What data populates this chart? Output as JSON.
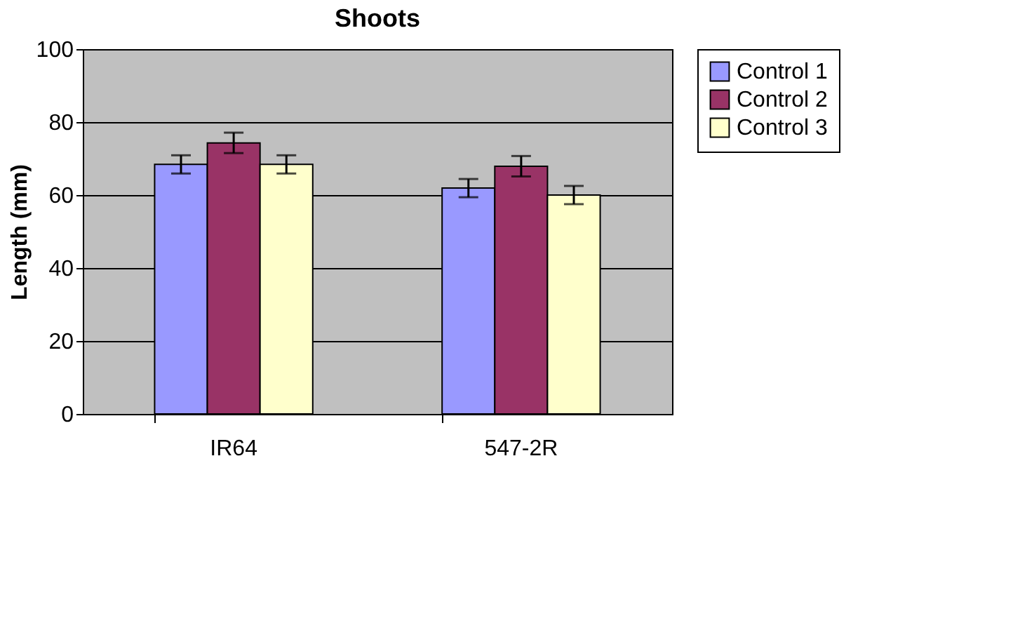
{
  "chart_data": {
    "type": "bar",
    "title": "Shoots",
    "ylabel": "Length (mm)",
    "categories": [
      "IR64",
      "547-2R"
    ],
    "series": [
      {
        "name": "Control 1",
        "color": "#9999ff",
        "values": [
          68.4,
          61.9
        ],
        "errors": [
          2.5,
          2.5
        ]
      },
      {
        "name": "Control 2",
        "color": "#993366",
        "values": [
          74.3,
          67.9
        ],
        "errors": [
          2.8,
          2.8
        ]
      },
      {
        "name": "Control 3",
        "color": "#ffffcc",
        "values": [
          68.4,
          60.0
        ],
        "errors": [
          2.5,
          2.5
        ]
      }
    ],
    "ylim": [
      0,
      100
    ],
    "yticks": [
      0,
      20,
      40,
      60,
      80,
      100
    ],
    "grid": "y",
    "legend": "right"
  }
}
